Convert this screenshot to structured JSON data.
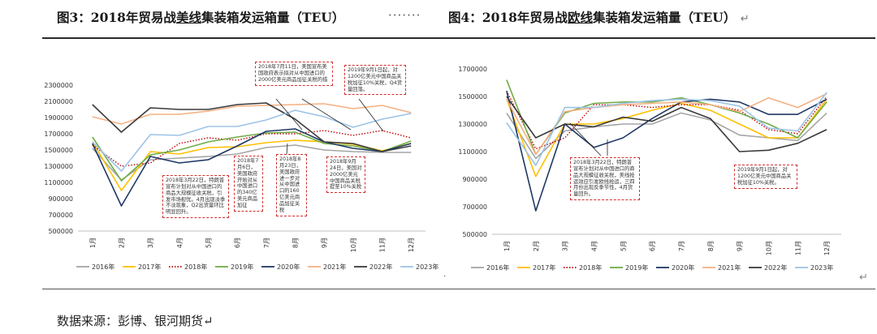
{
  "header": {
    "fig3_prefix": "图3：2018年贸易战",
    "fig3_underlined": "美线",
    "fig3_suffix": "集装箱发运箱量（TEU）",
    "dots": "·······",
    "fig4_prefix": "图4：2018年贸易战",
    "fig4_underlined": "欧线",
    "fig4_suffix": "集装箱发运箱量（TEU）",
    "return_mark": "↵"
  },
  "footer": {
    "source": "数据来源：彭博、银河期货↵",
    "dot": "·",
    "return_mark": "↵"
  },
  "colors": {
    "2016年": "#a5a5a5",
    "2017年": "#ffc000",
    "2018年": "#c00000",
    "2019年": "#70ad47",
    "2020年": "#203864",
    "2021年": "#f4b183",
    "2022年": "#3a3a3a",
    "2023年": "#9dc3e6"
  },
  "chart_data": [
    {
      "type": "line",
      "title": "2018年贸易战美线集装箱发运箱量（TEU）",
      "categories": [
        "1月",
        "2月",
        "3月",
        "4月",
        "5月",
        "6月",
        "7月",
        "8月",
        "9月",
        "10月",
        "11月",
        "12月"
      ],
      "ylim": [
        500000,
        2300000
      ],
      "yticks": [
        500000,
        700000,
        900000,
        1100000,
        1300000,
        1500000,
        1700000,
        1900000,
        2100000,
        2300000
      ],
      "ytick_labels": [
        "500000",
        "700000",
        "900000",
        "1100000",
        "1300000",
        "1500000",
        "1700000",
        "1900000",
        "2100000",
        "2300000"
      ],
      "legend_position": "bottom",
      "series": [
        {
          "name": "2016年",
          "style": "solid",
          "values": [
            1520000,
            1130000,
            1380000,
            1400000,
            1420000,
            1450000,
            1530000,
            1560000,
            1500000,
            1480000,
            1470000,
            1470000
          ]
        },
        {
          "name": "2017年",
          "style": "solid",
          "values": [
            1600000,
            1000000,
            1480000,
            1450000,
            1530000,
            1540000,
            1590000,
            1620000,
            1600000,
            1570000,
            1490000,
            1580000
          ]
        },
        {
          "name": "2018年",
          "style": "dotted",
          "values": [
            1560000,
            1300000,
            1340000,
            1580000,
            1650000,
            1620000,
            1700000,
            1700000,
            1740000,
            1680000,
            1740000,
            1650000
          ]
        },
        {
          "name": "2019年",
          "style": "solid",
          "values": [
            1660000,
            1120000,
            1440000,
            1500000,
            1600000,
            1660000,
            1710000,
            1720000,
            1580000,
            1550000,
            1480000,
            1610000
          ]
        },
        {
          "name": "2020年",
          "style": "solid",
          "values": [
            1580000,
            810000,
            1420000,
            1340000,
            1380000,
            1550000,
            1730000,
            1760000,
            1600000,
            1520000,
            1480000,
            1580000
          ]
        },
        {
          "name": "2021年",
          "style": "solid",
          "values": [
            1910000,
            1820000,
            1940000,
            1940000,
            1980000,
            2040000,
            2050000,
            2060000,
            2070000,
            2010000,
            2050000,
            1960000
          ]
        },
        {
          "name": "2022年",
          "style": "solid",
          "values": [
            2060000,
            1720000,
            2020000,
            2000000,
            2000000,
            2060000,
            2080000,
            1880000,
            1600000,
            1580000,
            1480000,
            1550000
          ]
        },
        {
          "name": "2023年",
          "style": "solid",
          "values": [
            1600000,
            1240000,
            1690000,
            1680000,
            1790000,
            1790000,
            1870000,
            1990000,
            1910000,
            1780000,
            1880000,
            1950000
          ]
        }
      ],
      "annotations": [
        {
          "text": "2018年3月22日，特朗普宣布计划对从中国进口的商品大规模征收关税，引发市场担忧。4月出现淡季不淡现象，Q2出货量环比明显回升。"
        },
        {
          "text": "2018年7月6日，美国政府开始对从中国进口的340亿美元商品加征"
        },
        {
          "text": "2018年8月23日，美国政府进一步对从中国进口的160亿美元商品加征关税"
        },
        {
          "text": "2018年9月24日，美国对2000亿美元中国商品关税提至10%关税"
        },
        {
          "text": "2018年7月11日，美国宣布美国政府表示拟对从中国进口的2000亿美元商品加征关税的措"
        },
        {
          "text": "2019年9月1日起，对1200亿美元中国商品关税加征10%关税，Q4货量回落。"
        }
      ]
    },
    {
      "type": "line",
      "title": "2018年贸易战欧线集装箱发运箱量（TEU）",
      "categories": [
        "1月",
        "2月",
        "3月",
        "4月",
        "5月",
        "6月",
        "7月",
        "8月",
        "9月",
        "10月",
        "11月",
        "12月"
      ],
      "ylim": [
        500000,
        1700000
      ],
      "yticks": [
        500000,
        700000,
        900000,
        1100000,
        1300000,
        1500000,
        1700000
      ],
      "ytick_labels": [
        "500000",
        "700000",
        "900000",
        "1100000",
        "1300000",
        "1500000",
        "1700000"
      ],
      "legend_position": "bottom",
      "series": [
        {
          "name": "2016年",
          "style": "solid",
          "values": [
            1380000,
            1050000,
            1250000,
            1280000,
            1300000,
            1300000,
            1380000,
            1330000,
            1220000,
            1200000,
            1180000,
            1380000
          ]
        },
        {
          "name": "2017年",
          "style": "solid",
          "values": [
            1480000,
            920000,
            1300000,
            1300000,
            1340000,
            1400000,
            1450000,
            1400000,
            1300000,
            1200000,
            1200000,
            1480000
          ]
        },
        {
          "name": "2018年",
          "style": "dotted",
          "values": [
            1540000,
            1120000,
            1200000,
            1440000,
            1440000,
            1420000,
            1440000,
            1440000,
            1400000,
            1260000,
            1230000,
            1500000
          ]
        },
        {
          "name": "2019年",
          "style": "solid",
          "values": [
            1620000,
            1080000,
            1380000,
            1450000,
            1460000,
            1460000,
            1490000,
            1440000,
            1380000,
            1300000,
            1200000,
            1460000
          ]
        },
        {
          "name": "2020年",
          "style": "solid",
          "values": [
            1540000,
            670000,
            1300000,
            1130000,
            1200000,
            1340000,
            1460000,
            1480000,
            1460000,
            1370000,
            1370000,
            1480000
          ]
        },
        {
          "name": "2021年",
          "style": "solid",
          "values": [
            1480000,
            1080000,
            1390000,
            1420000,
            1440000,
            1450000,
            1460000,
            1440000,
            1390000,
            1490000,
            1420000,
            1520000
          ]
        },
        {
          "name": "2022年",
          "style": "solid",
          "values": [
            1500000,
            1200000,
            1300000,
            1280000,
            1350000,
            1320000,
            1420000,
            1340000,
            1100000,
            1110000,
            1160000,
            1260000
          ]
        },
        {
          "name": "2023年",
          "style": "solid",
          "values": [
            1310000,
            1000000,
            1420000,
            1420000,
            1450000,
            1470000,
            1480000,
            1470000,
            1430000,
            1270000,
            1250000,
            1530000
          ]
        }
      ],
      "annotations": [
        {
          "text": "2018年3月22日，特朗普宣布计划对从中国进口的商品大规模征收关税，美线抢运效应引发欧线抢运，三四月份出现反季节性，4月货量回升。"
        },
        {
          "text": "2019年9月1日起，对1200亿美元中国商品关税加征10%关税。"
        }
      ]
    }
  ]
}
